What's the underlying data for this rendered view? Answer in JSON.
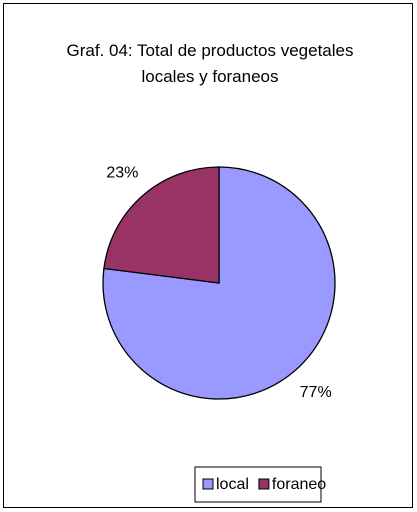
{
  "chart_data": {
    "type": "pie",
    "title": "Graf. 04: Total de productos vegetales locales y foraneos",
    "categories": [
      "local",
      "foraneo"
    ],
    "values": [
      77,
      23
    ],
    "value_labels": [
      "77%",
      "23%"
    ],
    "colors": [
      "#9999ff",
      "#993366"
    ],
    "legend": "bottom"
  }
}
